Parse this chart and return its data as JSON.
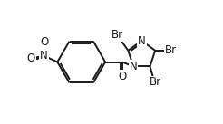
{
  "background_color": "#ffffff",
  "line_color": "#1a1a1a",
  "line_width": 1.4,
  "text_color": "#1a1a1a",
  "font_size": 8.5,
  "figsize": [
    2.46,
    1.37
  ],
  "dpi": 100,
  "xlim": [
    0,
    100
  ],
  "ylim": [
    15,
    85
  ]
}
